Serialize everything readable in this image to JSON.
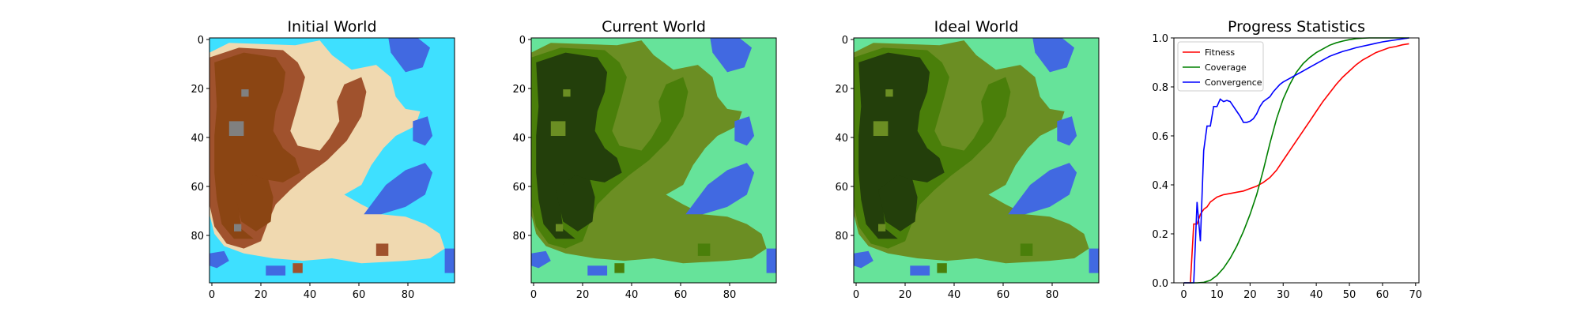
{
  "figure": {
    "panels": [
      {
        "title": "Initial World",
        "kind": "terrain-map",
        "palette": {
          "deep_water": "#4169e1",
          "shallow_water": "#3ee0ff",
          "sand": "#f0d9b0",
          "low_land": "#a0522d",
          "high_land": "#8b4513",
          "rock": "#808080"
        },
        "x_ticks": [
          "0",
          "20",
          "40",
          "60",
          "80"
        ],
        "y_ticks": [
          "0",
          "20",
          "40",
          "60",
          "80"
        ]
      },
      {
        "title": "Current World",
        "kind": "terrain-map",
        "palette": {
          "deep_water": "#4169e1",
          "shallow_water": "#66e39a",
          "sand": "#6b8e23",
          "low_land": "#4a7f0a",
          "high_land": "#233f0b",
          "rock": "#6b8e23"
        },
        "x_ticks": [
          "0",
          "20",
          "40",
          "60",
          "80"
        ],
        "y_ticks": [
          "0",
          "20",
          "40",
          "60",
          "80"
        ]
      },
      {
        "title": "Ideal World",
        "kind": "terrain-map",
        "palette": {
          "deep_water": "#4169e1",
          "shallow_water": "#66e39a",
          "sand": "#6b8e23",
          "low_land": "#4a7f0a",
          "high_land": "#233f0b",
          "rock": "#6b8e23"
        },
        "x_ticks": [
          "0",
          "20",
          "40",
          "60",
          "80"
        ],
        "y_ticks": [
          "0",
          "20",
          "40",
          "60",
          "80"
        ]
      }
    ]
  },
  "chart_data": {
    "type": "line",
    "title": "Progress Statistics",
    "xlabel": "",
    "ylabel": "",
    "xlim": [
      -3,
      71
    ],
    "ylim": [
      0,
      1
    ],
    "x_ticks": [
      0,
      10,
      20,
      30,
      40,
      50,
      60,
      70
    ],
    "y_ticks": [
      0.0,
      0.2,
      0.4,
      0.6,
      0.8,
      1.0
    ],
    "x_tick_labels": [
      "0",
      "10",
      "20",
      "30",
      "40",
      "50",
      "60",
      "70"
    ],
    "y_tick_labels": [
      "0.0",
      "0.2",
      "0.4",
      "0.6",
      "0.8",
      "1.0"
    ],
    "grid": false,
    "legend_position": "top-left",
    "series": [
      {
        "name": "Fitness",
        "color": "#ff0000",
        "x": [
          0,
          1,
          2,
          3,
          4,
          5,
          6,
          7,
          8,
          9,
          10,
          12,
          14,
          16,
          18,
          20,
          22,
          24,
          26,
          28,
          30,
          32,
          34,
          36,
          38,
          40,
          42,
          44,
          46,
          48,
          50,
          52,
          54,
          56,
          58,
          60,
          62,
          64,
          66,
          68
        ],
        "y": [
          0,
          0,
          0,
          0.24,
          0.24,
          0.28,
          0.3,
          0.31,
          0.33,
          0.34,
          0.35,
          0.36,
          0.365,
          0.37,
          0.375,
          0.385,
          0.395,
          0.41,
          0.43,
          0.46,
          0.5,
          0.54,
          0.58,
          0.62,
          0.66,
          0.7,
          0.74,
          0.775,
          0.81,
          0.84,
          0.865,
          0.89,
          0.91,
          0.925,
          0.94,
          0.95,
          0.96,
          0.965,
          0.972,
          0.976
        ]
      },
      {
        "name": "Coverage",
        "color": "#008000",
        "x": [
          0,
          2,
          4,
          6,
          8,
          10,
          12,
          14,
          16,
          18,
          20,
          22,
          24,
          26,
          28,
          30,
          32,
          34,
          36,
          38,
          40,
          42,
          44,
          46,
          48,
          50,
          52,
          54,
          56,
          58,
          60,
          62,
          64,
          66,
          68
        ],
        "y": [
          0,
          0,
          0,
          0.002,
          0.01,
          0.03,
          0.06,
          0.1,
          0.15,
          0.21,
          0.28,
          0.36,
          0.46,
          0.57,
          0.67,
          0.75,
          0.81,
          0.86,
          0.895,
          0.92,
          0.94,
          0.955,
          0.97,
          0.98,
          0.987,
          0.993,
          0.997,
          0.999,
          1.0,
          1.0,
          1.0,
          1.0,
          1.0,
          1.0,
          1.0
        ]
      },
      {
        "name": "Convergence",
        "color": "#0000ff",
        "x": [
          0,
          1,
          2,
          3,
          4,
          5,
          6,
          7,
          8,
          9,
          10,
          11,
          12,
          13,
          14,
          15,
          16,
          17,
          18,
          19,
          20,
          21,
          22,
          23,
          24,
          25,
          26,
          27,
          28,
          29,
          30,
          32,
          34,
          36,
          38,
          40,
          42,
          44,
          46,
          48,
          50,
          52,
          54,
          56,
          58,
          60,
          62,
          64,
          66,
          68
        ],
        "y": [
          0,
          0,
          0,
          0.0,
          0.33,
          0.17,
          0.54,
          0.64,
          0.64,
          0.72,
          0.72,
          0.75,
          0.74,
          0.745,
          0.74,
          0.72,
          0.7,
          0.68,
          0.655,
          0.655,
          0.66,
          0.67,
          0.69,
          0.72,
          0.74,
          0.75,
          0.76,
          0.78,
          0.795,
          0.81,
          0.82,
          0.835,
          0.85,
          0.865,
          0.88,
          0.895,
          0.91,
          0.925,
          0.935,
          0.945,
          0.952,
          0.96,
          0.966,
          0.972,
          0.978,
          0.984,
          0.988,
          0.992,
          0.996,
          1.0
        ]
      }
    ]
  }
}
